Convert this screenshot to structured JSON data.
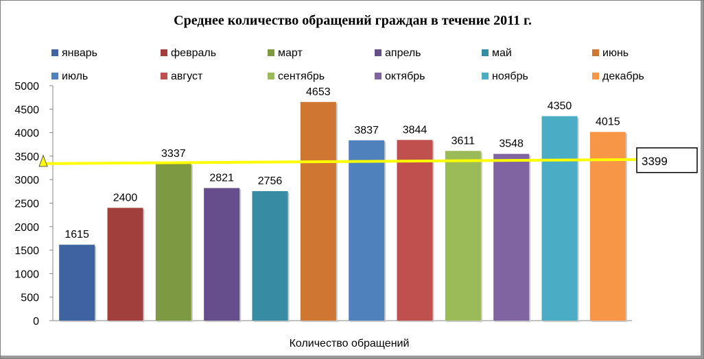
{
  "chart_data": {
    "type": "bar",
    "title": "Среднее количество обращений граждан в течение 2011 г.",
    "xlabel": "Количество обращений",
    "ylabel": "",
    "ylim": [
      0,
      5000
    ],
    "y_ticks": [
      0,
      500,
      1000,
      1500,
      2000,
      2500,
      3000,
      3500,
      4000,
      4500,
      5000
    ],
    "grid": false,
    "legend_position": "top",
    "categories": [
      "январь",
      "февраль",
      "март",
      "апрель",
      "май",
      "июнь",
      "июль",
      "август",
      "сентябрь",
      "октябрь",
      "ноябрь",
      "декабрь"
    ],
    "values": [
      1615,
      2400,
      3337,
      2821,
      2756,
      4653,
      3837,
      3844,
      3611,
      3548,
      4350,
      4015
    ],
    "colors": [
      "#3f62a0",
      "#a13f3d",
      "#7d9a43",
      "#664d8b",
      "#378ba2",
      "#cf7732",
      "#4f81bd",
      "#c0504d",
      "#9bbb59",
      "#8064a2",
      "#4bacc6",
      "#f79646"
    ],
    "average": {
      "value": 3399,
      "label": "3399",
      "color": "#ffff00"
    }
  }
}
